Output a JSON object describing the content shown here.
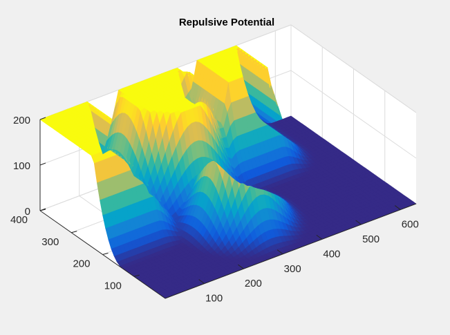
{
  "chart_data": {
    "type": "surface",
    "title": "Repulsive Potential",
    "xlabel": "",
    "ylabel": "",
    "zlabel": "",
    "xlim": [
      0,
      640
    ],
    "ylim": [
      0,
      400
    ],
    "zlim": [
      0,
      200
    ],
    "x_ticks": [
      "100",
      "200",
      "300",
      "400",
      "500",
      "600"
    ],
    "y_ticks": [
      "100",
      "200",
      "300",
      "400"
    ],
    "z_ticks": [
      "0",
      "100",
      "200"
    ],
    "grid": true,
    "colormap": "parula",
    "colormap_colors": [
      "#352a87",
      "#0f5cdd",
      "#1481d6",
      "#06a4ca",
      "#2eb7a4",
      "#87bf77",
      "#d1bb59",
      "#fec832",
      "#f9fb0e"
    ],
    "view": {
      "azimuth": -37.5,
      "elevation": 30
    },
    "obstacles": [
      {
        "shape": "box",
        "x_range": [
          0,
          125
        ],
        "y_range": [
          230,
          400
        ],
        "peak": 200
      },
      {
        "shape": "disk",
        "center": [
          275,
          350
        ],
        "radius": 90,
        "peak": 200
      },
      {
        "shape": "box",
        "x_range": [
          400,
          500
        ],
        "y_range": [
          300,
          400
        ],
        "peak": 200
      },
      {
        "shape": "disk",
        "center": [
          300,
          150
        ],
        "radius": 50,
        "peak": 200
      }
    ],
    "decay_distance": 95
  }
}
